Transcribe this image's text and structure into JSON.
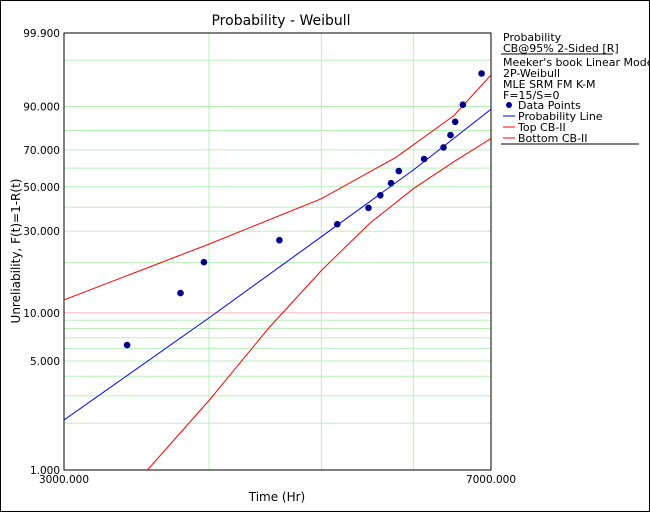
{
  "chart_data": {
    "type": "scatter",
    "title": "Probability - Weibull",
    "xlabel": "Time (Hr)",
    "ylabel": "Unreliability, F(t)=1-R(t)",
    "xlim": [
      3000,
      7000
    ],
    "ylim": [
      1.0,
      99.9
    ],
    "x_scale": "log",
    "y_scale": "weibull-probability",
    "grid": true,
    "x_tick_labels": [
      "3000.000",
      "7000.000"
    ],
    "y_ticks": [
      {
        "value": 99.9,
        "label": "99.900"
      },
      {
        "value": 90.0,
        "label": "90.000"
      },
      {
        "value": 70.0,
        "label": "70.000"
      },
      {
        "value": 50.0,
        "label": "50.000"
      },
      {
        "value": 30.0,
        "label": "30.000"
      },
      {
        "value": 10.0,
        "label": "10.000"
      },
      {
        "value": 5.0,
        "label": "5.000"
      },
      {
        "value": 1.0,
        "label": "1.000"
      }
    ],
    "series": [
      {
        "name": "Data Points",
        "kind": "points",
        "color": "#00008b",
        "points": [
          [
            3400,
            6.3
          ],
          [
            3780,
            13.2
          ],
          [
            3960,
            20.1
          ],
          [
            4600,
            26.8
          ],
          [
            5160,
            32.7
          ],
          [
            5490,
            39.7
          ],
          [
            5620,
            45.7
          ],
          [
            5740,
            51.9
          ],
          [
            5830,
            58.4
          ],
          [
            6130,
            65.0
          ],
          [
            6370,
            71.3
          ],
          [
            6460,
            77.7
          ],
          [
            6520,
            84.0
          ],
          [
            6620,
            90.6
          ],
          [
            6870,
            97.7
          ]
        ]
      },
      {
        "name": "Probability Line",
        "kind": "line",
        "color": "#0000ff",
        "points": [
          [
            3000,
            2.1
          ],
          [
            4000,
            9.3
          ],
          [
            5000,
            28.0
          ],
          [
            6000,
            59.0
          ],
          [
            7000,
            89.0
          ]
        ]
      },
      {
        "name": "Top CB-II",
        "kind": "line",
        "color": "#ff0000",
        "points": [
          [
            3000,
            12.0
          ],
          [
            4000,
            25.5
          ],
          [
            5000,
            44.0
          ],
          [
            5800,
            66.0
          ],
          [
            6500,
            86.5
          ],
          [
            7000,
            97.5
          ]
        ]
      },
      {
        "name": "Bottom CB-II",
        "kind": "line",
        "color": "#ff0000",
        "points": [
          [
            3540,
            1.0
          ],
          [
            4000,
            2.8
          ],
          [
            4500,
            8.0
          ],
          [
            5000,
            18.0
          ],
          [
            5500,
            33.0
          ],
          [
            6000,
            49.0
          ],
          [
            6500,
            63.5
          ],
          [
            7000,
            76.0
          ]
        ]
      }
    ],
    "legend_position": "right"
  },
  "legend": {
    "heading": "Probability",
    "subheading": "CB@95% 2-Sided [R]",
    "info_lines": [
      "Meeker's book Linear Model",
      "2P-Weibull",
      "MLE SRM FM K-M",
      "F=15/S=0"
    ],
    "entries": [
      "Data Points",
      "Probability Line",
      "Top CB-II",
      "Bottom CB-II"
    ]
  },
  "colors": {
    "grid": "#b8f0b8",
    "grid_red": "#f0b8b8",
    "points": "#00008b",
    "fit_line": "#0000ff",
    "bounds": "#ff0000"
  }
}
